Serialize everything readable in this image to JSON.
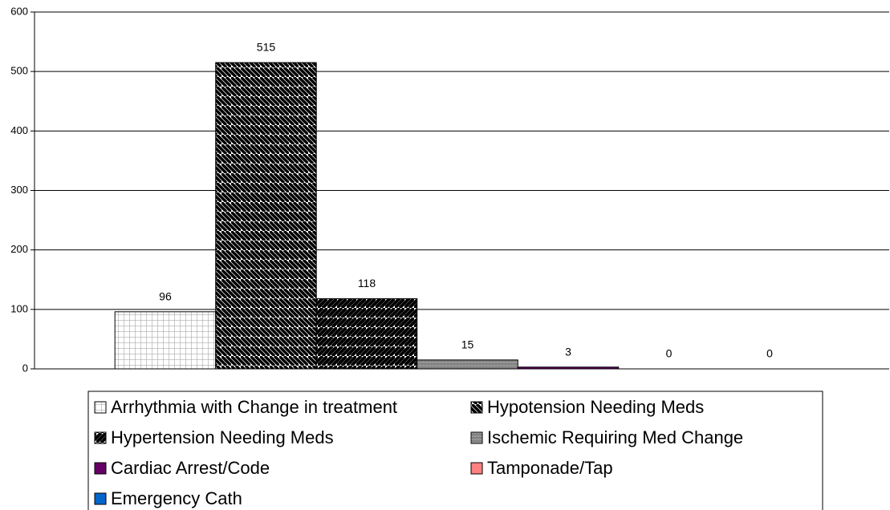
{
  "chart_data": {
    "type": "bar",
    "categories": [
      null
    ],
    "series": [
      {
        "name": "Arrhythmia with Change in treatment",
        "color": "#9a9a9a",
        "pattern": "grid",
        "values": [
          96
        ]
      },
      {
        "name": "Hypotension Needing Meds",
        "color": "#000000",
        "pattern": "diagonal-down",
        "values": [
          515
        ]
      },
      {
        "name": "Hypertension Needing Meds",
        "color": "#000000",
        "pattern": "diagonal-up",
        "values": [
          118
        ]
      },
      {
        "name": "Ischemic Requiring Med Change",
        "color": "#6a6a6a",
        "pattern": "diagonal-up-fine",
        "values": [
          15
        ]
      },
      {
        "name": "Cardiac Arrest/Code",
        "color": "#660066",
        "values": [
          3
        ]
      },
      {
        "name": "Tamponade/Tap",
        "color": "#ff8080",
        "values": [
          0
        ]
      },
      {
        "name": "Emergency Cath",
        "color": "#0066cc",
        "values": [
          0
        ]
      }
    ],
    "ylim": [
      0,
      600
    ],
    "yticks": [
      0,
      100,
      200,
      300,
      400,
      500,
      600
    ],
    "grid": true,
    "legend": "bottom"
  }
}
